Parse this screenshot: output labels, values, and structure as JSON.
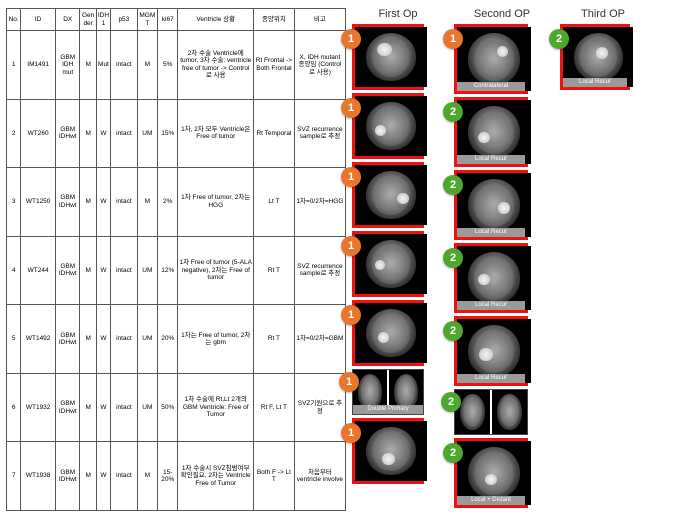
{
  "table": {
    "headers": [
      "No.",
      "ID",
      "DX",
      "Gender",
      "IDH1",
      "p53",
      "MGMT",
      "ki67",
      "Ventricle 상황",
      "종양위치",
      "비고"
    ],
    "col_widths": [
      "14px",
      "34px",
      "24px",
      "16px",
      "14px",
      "26px",
      "20px",
      "20px",
      "74px",
      "40px",
      "50px"
    ],
    "rows": [
      {
        "no": "1",
        "id": "IM1491",
        "dx": "GBM IDH mut",
        "gen": "M",
        "idh": "Mut",
        "p53": "intact",
        "mgmt": "M",
        "ki67": "5%",
        "vent": "2차 수술 Ventricle에 tumor, 3차 수술: ventricle free of tumor -> Control로 사용",
        "loc": "Rt Frontal -> Both Frontal",
        "note": "X, IDH mutant 종양임 (Control로 사용)"
      },
      {
        "no": "2",
        "id": "WT260",
        "dx": "GBM IDHwt",
        "gen": "M",
        "idh": "W",
        "p53": "intact",
        "mgmt": "UM",
        "ki67": "15%",
        "vent": "1차, 2차 모두 Ventricle은 Free of tumor",
        "loc": "Rt Temporal",
        "note": "SVZ recurrence sample로 추정"
      },
      {
        "no": "3",
        "id": "WT1250",
        "dx": "GBM IDHwt",
        "gen": "M",
        "idh": "W",
        "p53": "intact",
        "mgmt": "M",
        "ki67": "2%",
        "vent": "1차 Free of tumor, 2차는 HGG",
        "loc": "Lt T",
        "note": "1차=0/2차=HGG"
      },
      {
        "no": "4",
        "id": "WT244",
        "dx": "GBM IDHwt",
        "gen": "M",
        "idh": "W",
        "p53": "intact",
        "mgmt": "UM",
        "ki67": "12%",
        "vent": "1차 Free of tumor (5-ALA negative), 2차는 Free of tumor",
        "loc": "Rt T",
        "note": "SVZ recurrence sample로 추정"
      },
      {
        "no": "5",
        "id": "WT1492",
        "dx": "GBM IDHwt",
        "gen": "M",
        "idh": "W",
        "p53": "intact",
        "mgmt": "UM",
        "ki67": "20%",
        "vent": "1차는 Free of tumor, 2차는 gbm",
        "loc": "Rt T",
        "note": "1차=0/2차=GBM"
      },
      {
        "no": "6",
        "id": "WT1932",
        "dx": "GBM IDHwt",
        "gen": "M",
        "idh": "W",
        "p53": "intact",
        "mgmt": "UM",
        "ki67": "50%",
        "vent": "1차 수술에 Rt,Lt 2개의 GBM Ventricle: Free of Tumor",
        "loc": "Rt F, Lt T",
        "note": "SVZ기원으로 추정"
      },
      {
        "no": "7",
        "id": "WT1938",
        "dx": "GBM IDHwt",
        "gen": "M",
        "idh": "W",
        "p53": "intact",
        "mgmt": "M",
        "ki67": "15-20%",
        "vent": "1차 수술시 SVZ침범여부 확인필요, 2차는 Ventricle Free of Tumor",
        "loc": "Both F -> Lt T",
        "note": "처음부터 ventricle involve"
      }
    ]
  },
  "columns": {
    "first": {
      "title": "First Op",
      "badge_color": "orange",
      "badge_text": "1",
      "scan_w": 72,
      "scan_h": 60,
      "items": [
        {
          "frame": "red",
          "caption": "",
          "lesion": {
            "l": "22%",
            "t": "20%",
            "w": "30%",
            "h": "28%"
          }
        },
        {
          "frame": "red",
          "caption": "",
          "lesion": {
            "l": "18%",
            "t": "48%",
            "w": "22%",
            "h": "22%"
          }
        },
        {
          "frame": "red",
          "caption": "",
          "lesion": {
            "l": "62%",
            "t": "45%",
            "w": "24%",
            "h": "24%"
          }
        },
        {
          "frame": "red",
          "caption": "",
          "lesion": {
            "l": "18%",
            "t": "42%",
            "w": "20%",
            "h": "20%"
          }
        },
        {
          "frame": "red",
          "caption": "",
          "lesion": {
            "l": "25%",
            "t": "48%",
            "w": "22%",
            "h": "22%"
          }
        },
        {
          "frame": "plain",
          "pair": true,
          "caption": "Double Primary",
          "h": 44
        },
        {
          "frame": "red",
          "caption": "",
          "lesion": {
            "l": "32%",
            "t": "55%",
            "w": "26%",
            "h": "24%"
          }
        }
      ]
    },
    "second": {
      "title": "Second OP",
      "badge_color": "green",
      "badge_text": "2",
      "scan_w": 74,
      "scan_h": 64,
      "items": [
        {
          "frame": "red",
          "caption": "Contralateral",
          "badge": "1",
          "badge_color": "orange",
          "lesion": {
            "l": "55%",
            "t": "25%",
            "w": "22%",
            "h": "22%"
          }
        },
        {
          "frame": "red",
          "caption": "Local Recur",
          "lesion": {
            "l": "20%",
            "t": "50%",
            "w": "22%",
            "h": "22%"
          }
        },
        {
          "frame": "red",
          "caption": "Local Recur",
          "lesion": {
            "l": "58%",
            "t": "45%",
            "w": "22%",
            "h": "22%"
          }
        },
        {
          "frame": "red",
          "caption": "Local Recur",
          "lesion": {
            "l": "20%",
            "t": "42%",
            "w": "22%",
            "h": "22%"
          }
        },
        {
          "frame": "red",
          "caption": "Local Recur",
          "lesion": {
            "l": "22%",
            "t": "45%",
            "w": "26%",
            "h": "24%"
          }
        },
        {
          "frame": "plain",
          "pair": true,
          "caption": "",
          "h": 44
        },
        {
          "frame": "red",
          "caption": "Local + Distant",
          "lesion": {
            "l": "32%",
            "t": "52%",
            "w": "24%",
            "h": "22%"
          }
        }
      ]
    },
    "third": {
      "title": "Third OP",
      "badge_color": "green",
      "badge_text": "2",
      "scan_w": 70,
      "scan_h": 60,
      "items": [
        {
          "frame": "red",
          "caption": "Local Recur",
          "lesion": {
            "l": "45%",
            "t": "30%",
            "w": "26%",
            "h": "24%"
          }
        }
      ]
    }
  },
  "colors": {
    "red_border": "#e11",
    "orange": "#e8762d",
    "green": "#4ea72e",
    "caption_bg": "#9a9a9a"
  }
}
